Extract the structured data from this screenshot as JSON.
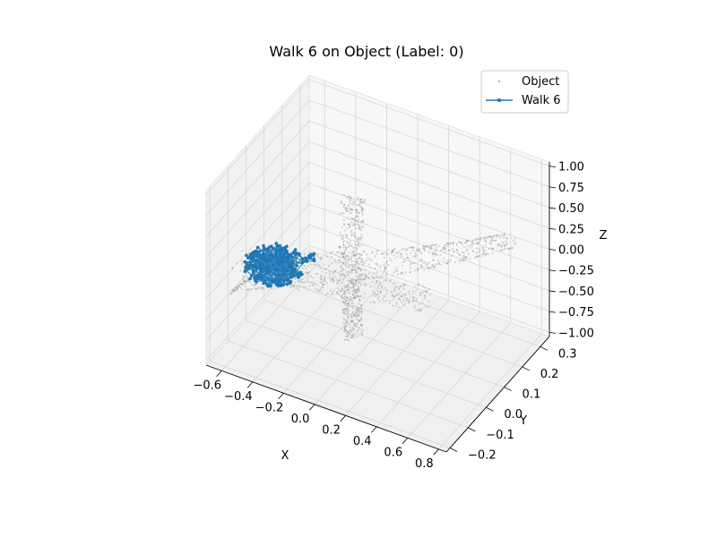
{
  "chart_data": {
    "type": "scatter",
    "projection": "3d",
    "title": "Walk 6 on Object (Label: 0)",
    "xlabel": "X",
    "ylabel": "Y",
    "zlabel": "Z",
    "xlim": [
      -0.7,
      0.85
    ],
    "ylim": [
      -0.22,
      0.35
    ],
    "zlim": [
      -1.05,
      1.05
    ],
    "x_ticks": [
      "−0.6",
      "−0.4",
      "−0.2",
      "0.0",
      "0.2",
      "0.4",
      "0.6",
      "0.8"
    ],
    "y_ticks": [
      "−0.2",
      "−0.1",
      "0.0",
      "0.1",
      "0.2",
      "0.3"
    ],
    "z_ticks": [
      "−1.00",
      "−0.75",
      "−0.50",
      "−0.25",
      "0.00",
      "0.25",
      "0.50",
      "0.75",
      "1.00"
    ],
    "grid": true,
    "legend_position": "top-right",
    "series": [
      {
        "name": "Object",
        "kind": "point-cloud",
        "color": "#808080",
        "description_points": "airplane-shaped point cloud"
      },
      {
        "name": "Walk 6",
        "kind": "line-markers",
        "color": "#1f77b4"
      }
    ]
  }
}
